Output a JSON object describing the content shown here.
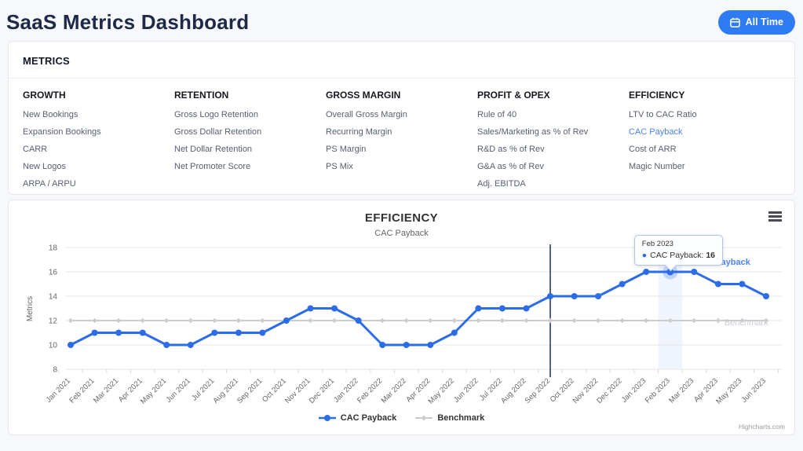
{
  "header": {
    "title": "SaaS Metrics Dashboard",
    "time_button": {
      "label": "All Time"
    }
  },
  "metrics_panel": {
    "title": "METRICS",
    "selected_item": "CAC Payback",
    "selected_color": "#4c82f7",
    "columns": [
      {
        "header": "GROWTH",
        "items": [
          "New Bookings",
          "Expansion Bookings",
          "CARR",
          "New Logos",
          "ARPA / ARPU"
        ]
      },
      {
        "header": "RETENTION",
        "items": [
          "Gross Logo Retention",
          "Gross Dollar Retention",
          "Net Dollar Retention",
          "Net Promoter Score"
        ]
      },
      {
        "header": "GROSS MARGIN",
        "items": [
          "Overall Gross Margin",
          "Recurring Margin",
          "PS Margin",
          "PS Mix"
        ]
      },
      {
        "header": "PROFIT & OPEX",
        "items": [
          "Rule of 40",
          "Sales/Marketing as % of Rev",
          "R&D as % of Rev",
          "G&A as % of Rev",
          "Adj. EBITDA"
        ]
      },
      {
        "header": "EFFICIENCY",
        "items": [
          "LTV to CAC Ratio",
          "CAC Payback",
          "Cost of ARR",
          "Magic Number"
        ]
      }
    ]
  },
  "chart_data": {
    "type": "line",
    "title": "EFFICIENCY",
    "subtitle": "CAC Payback",
    "ylabel": "Metrics",
    "ylim": [
      8,
      18
    ],
    "yticks": [
      8,
      10,
      12,
      14,
      16,
      18
    ],
    "grid": true,
    "legend_position": "bottom",
    "categories": [
      "Jan 2021",
      "Feb 2021",
      "Mar 2021",
      "Apr 2021",
      "May 2021",
      "Jun 2021",
      "Jul 2021",
      "Aug 2021",
      "Sep 2021",
      "Oct 2021",
      "Nov 2021",
      "Dec 2021",
      "Jan 2022",
      "Feb 2022",
      "Mar 2022",
      "Apr 2022",
      "May 2022",
      "Jun 2022",
      "Jul 2022",
      "Aug 2022",
      "Sep 2022",
      "Oct 2022",
      "Nov 2022",
      "Dec 2022",
      "Jan 2023",
      "Feb 2023",
      "Mar 2023",
      "Apr 2023",
      "May 2023",
      "Jun 2023"
    ],
    "series": [
      {
        "name": "CAC Payback",
        "color": "#2c6ce8",
        "marker": "circle",
        "values": [
          10,
          11,
          11,
          11,
          10,
          10,
          11,
          11,
          11,
          12,
          13,
          13,
          12,
          10,
          10,
          10,
          11,
          13,
          13,
          13,
          14,
          14,
          14,
          15,
          16,
          16,
          16,
          15,
          15,
          14
        ]
      },
      {
        "name": "Benchmark",
        "color": "#cccccc",
        "marker": "diamond",
        "values": [
          12,
          12,
          12,
          12,
          12,
          12,
          12,
          12,
          12,
          12,
          12,
          12,
          12,
          12,
          12,
          12,
          12,
          12,
          12,
          12,
          12,
          12,
          12,
          12,
          12,
          12,
          12,
          12,
          12,
          12
        ]
      }
    ],
    "plot_line": {
      "category": "Sep 2022",
      "color": "#1b3150"
    },
    "highlight": {
      "category": "Feb 2023",
      "color": "rgba(68,115,230,0.08)"
    },
    "tooltip": {
      "header": "Feb 2023",
      "series_label": "CAC Payback:",
      "value": "16"
    },
    "credits": "Highcharts.com"
  }
}
